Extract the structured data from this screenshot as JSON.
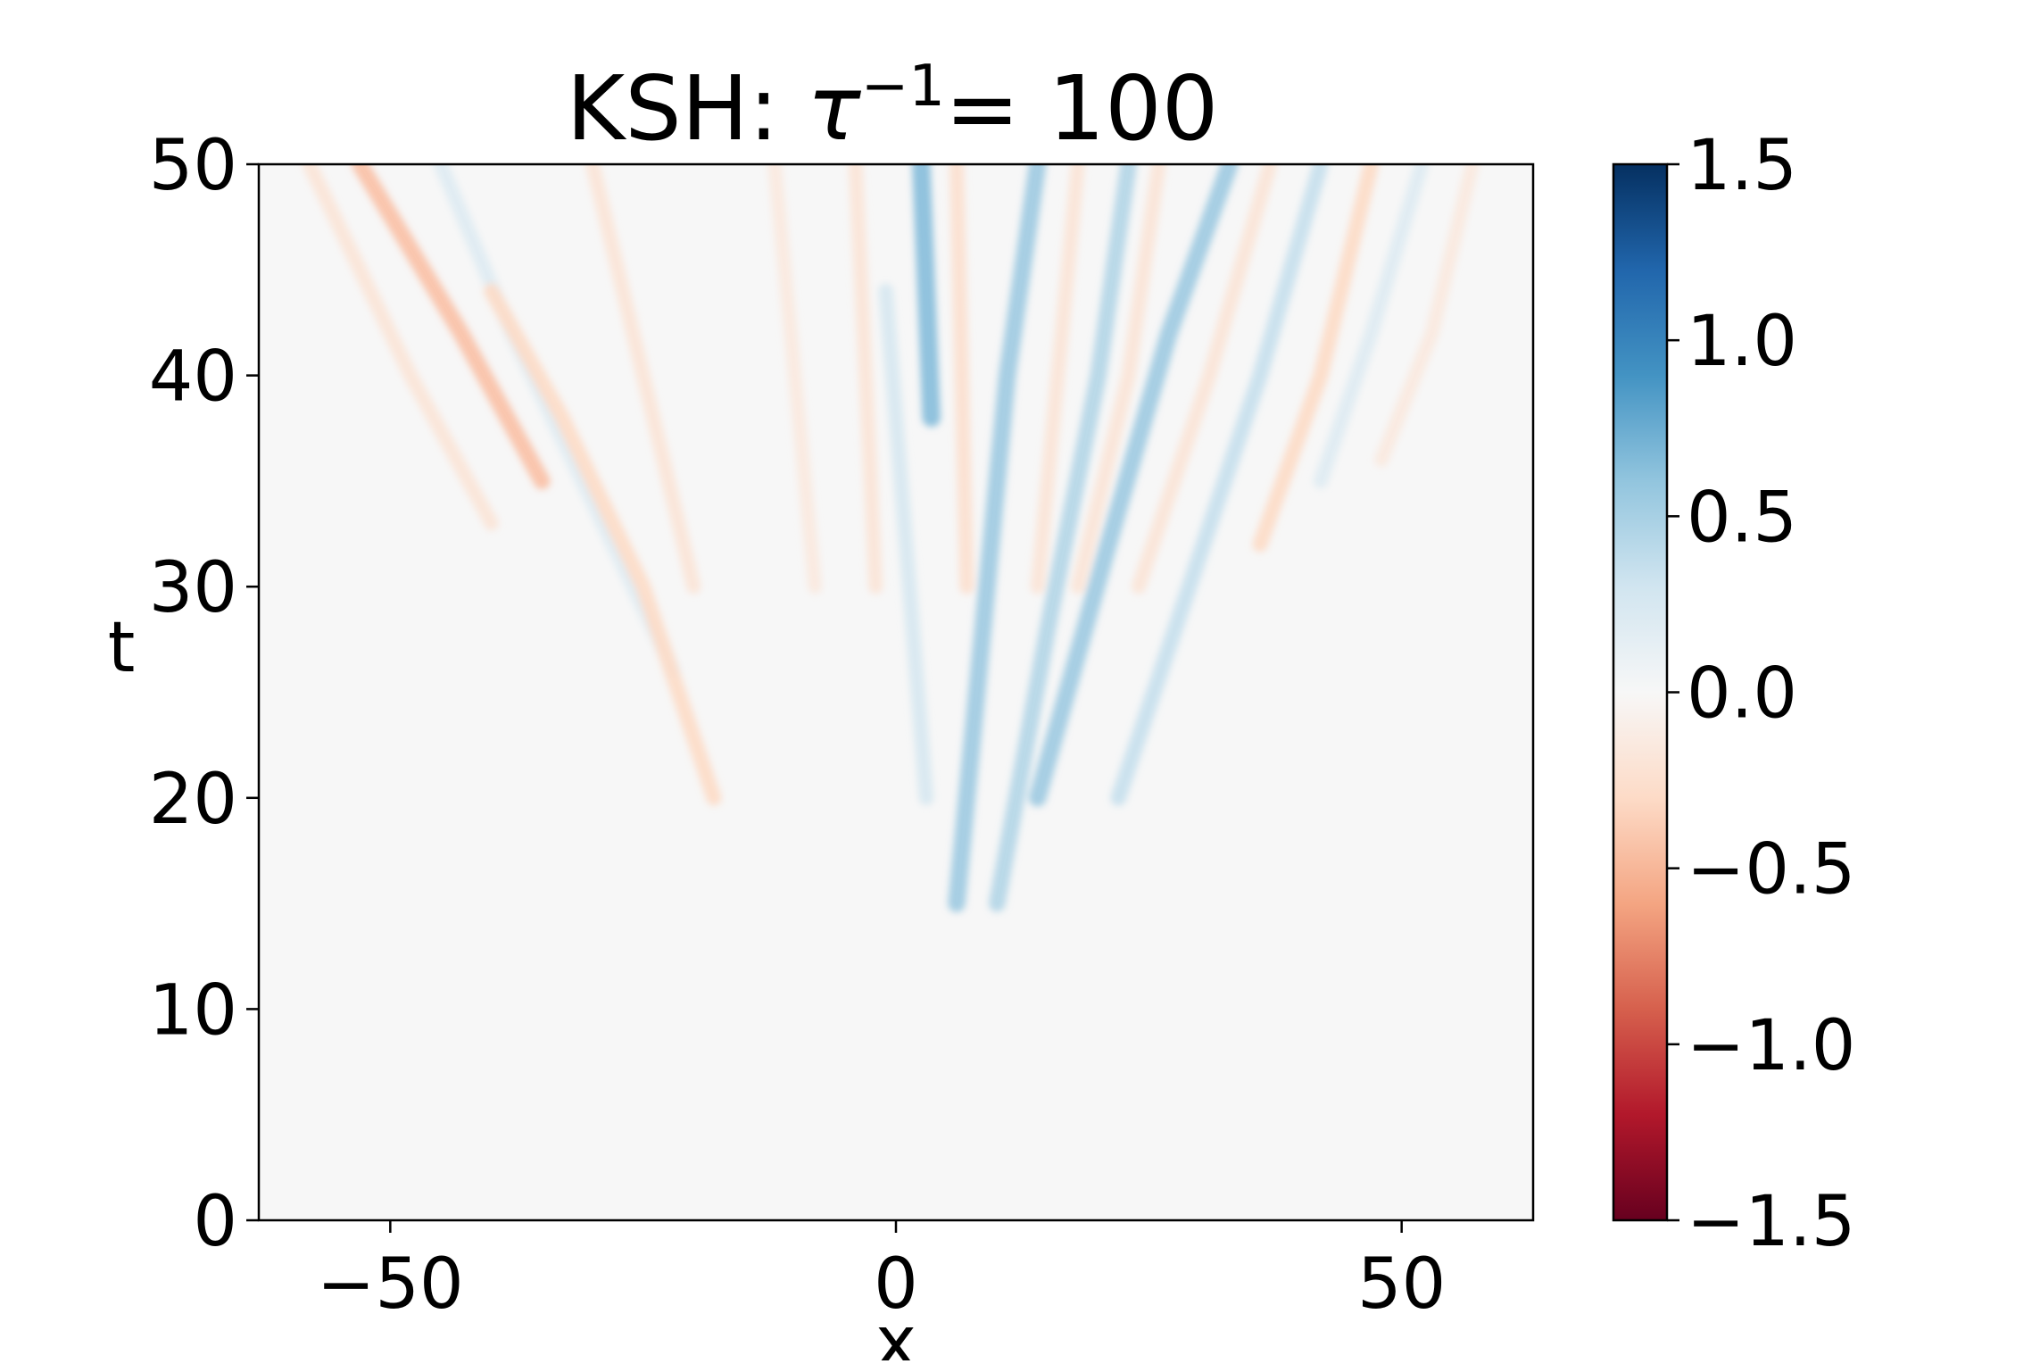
{
  "chart_data": {
    "type": "heatmap",
    "title": {
      "prefix": "KSH: ",
      "symbol": "τ",
      "exponent": "−1",
      "suffix": "= 100"
    },
    "xlabel": "x",
    "ylabel": "t",
    "xlim": [
      -63,
      63
    ],
    "ylim": [
      0,
      50
    ],
    "x_ticks": [
      {
        "value": -50,
        "label": "−50"
      },
      {
        "value": 0,
        "label": "0"
      },
      {
        "value": 50,
        "label": "50"
      }
    ],
    "y_ticks": [
      {
        "value": 0,
        "label": "0"
      },
      {
        "value": 10,
        "label": "10"
      },
      {
        "value": 20,
        "label": "20"
      },
      {
        "value": 30,
        "label": "30"
      },
      {
        "value": 40,
        "label": "40"
      },
      {
        "value": 50,
        "label": "50"
      }
    ],
    "colorbar": {
      "colormap": "RdBu",
      "range": [
        -1.5,
        1.5
      ],
      "ticks": [
        {
          "value": 1.5,
          "label": "1.5"
        },
        {
          "value": 1.0,
          "label": "1.0"
        },
        {
          "value": 0.5,
          "label": "0.5"
        },
        {
          "value": 0.0,
          "label": "0.0"
        },
        {
          "value": -0.5,
          "label": "−0.5"
        },
        {
          "value": -1.0,
          "label": "−1.0"
        },
        {
          "value": -1.5,
          "label": "−1.5"
        }
      ],
      "colors": [
        "#67001f",
        "#b2182b",
        "#d6604d",
        "#f4a582",
        "#fddbc7",
        "#f7f7f7",
        "#d1e5f0",
        "#92c5de",
        "#4393c3",
        "#2166ac",
        "#053061"
      ]
    },
    "background_value": 0.0,
    "bands": [
      {
        "x": [
          -53,
          -43,
          -35
        ],
        "t": [
          50,
          42,
          35
        ],
        "value": -0.45
      },
      {
        "x": [
          -58,
          -48,
          -40
        ],
        "t": [
          50,
          40,
          33
        ],
        "value": -0.2
      },
      {
        "x": [
          -45,
          -38,
          -30,
          -22
        ],
        "t": [
          50,
          42,
          34,
          26
        ],
        "value": 0.2
      },
      {
        "x": [
          -40,
          -33,
          -25,
          -18
        ],
        "t": [
          44,
          38,
          30,
          20
        ],
        "value": -0.3
      },
      {
        "x": [
          -30,
          -25,
          -20
        ],
        "t": [
          50,
          40,
          30
        ],
        "value": -0.2
      },
      {
        "x": [
          -12,
          -10,
          -8
        ],
        "t": [
          50,
          40,
          30
        ],
        "value": -0.15
      },
      {
        "x": [
          -4,
          -3,
          -2
        ],
        "t": [
          50,
          40,
          30
        ],
        "value": -0.2
      },
      {
        "x": [
          2.5,
          3,
          3.5
        ],
        "t": [
          50,
          44,
          38
        ],
        "value": 0.65
      },
      {
        "x": [
          -1,
          1,
          3
        ],
        "t": [
          44,
          32,
          20
        ],
        "value": 0.25
      },
      {
        "x": [
          6,
          6.5,
          7
        ],
        "t": [
          50,
          40,
          30
        ],
        "value": -0.25
      },
      {
        "x": [
          14,
          11,
          9,
          6
        ],
        "t": [
          50,
          40,
          30,
          15
        ],
        "value": 0.55
      },
      {
        "x": [
          18,
          16,
          14
        ],
        "t": [
          50,
          40,
          30
        ],
        "value": -0.2
      },
      {
        "x": [
          23,
          20,
          15,
          10
        ],
        "t": [
          50,
          40,
          28,
          15
        ],
        "value": 0.45
      },
      {
        "x": [
          26,
          23,
          18
        ],
        "t": [
          50,
          40,
          30
        ],
        "value": -0.2
      },
      {
        "x": [
          33,
          27,
          21,
          14
        ],
        "t": [
          50,
          42,
          32,
          20
        ],
        "value": 0.55
      },
      {
        "x": [
          37,
          31,
          24
        ],
        "t": [
          50,
          40,
          30
        ],
        "value": -0.2
      },
      {
        "x": [
          42,
          36,
          29,
          22
        ],
        "t": [
          50,
          40,
          30,
          20
        ],
        "value": 0.35
      },
      {
        "x": [
          47,
          42,
          36
        ],
        "t": [
          50,
          40,
          32
        ],
        "value": -0.3
      },
      {
        "x": [
          52,
          47,
          42
        ],
        "t": [
          50,
          42,
          35
        ],
        "value": 0.2
      },
      {
        "x": [
          57,
          53,
          48
        ],
        "t": [
          50,
          42,
          36
        ],
        "value": -0.15
      }
    ]
  }
}
